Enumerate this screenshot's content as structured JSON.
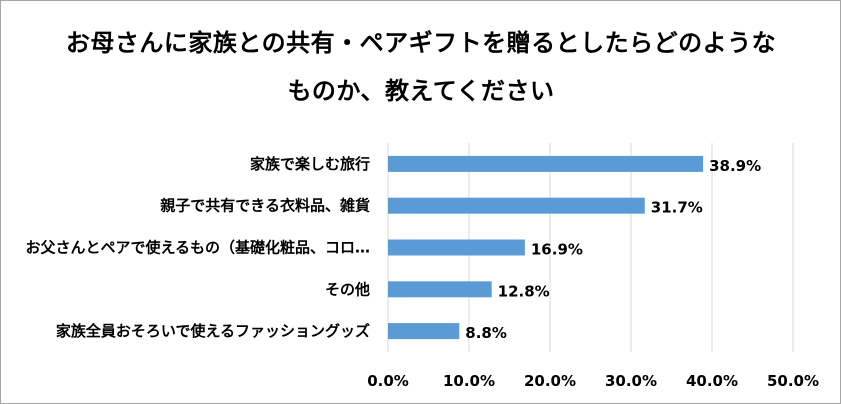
{
  "chart_data": {
    "type": "bar",
    "orientation": "horizontal",
    "title": "お母さんに家族との共有・ペアギフトを贈るとしたらどのようなものか、教えてください",
    "categories": [
      "家族で楽しむ旅行",
      "親子で共有できる衣料品、雑貨",
      "お父さんとペアで使えるもの（基礎化粧品、コロ…",
      "その他",
      "家族全員おそろいで使えるファッショングッズ"
    ],
    "values": [
      38.9,
      31.7,
      16.9,
      12.8,
      8.8
    ],
    "value_labels": [
      "38.9%",
      "31.7%",
      "16.9%",
      "12.8%",
      "8.8%"
    ],
    "xlim": [
      0,
      50
    ],
    "ticks": [
      "0.0%",
      "10.0%",
      "20.0%",
      "30.0%",
      "40.0%",
      "50.0%"
    ],
    "tick_values": [
      0,
      10,
      20,
      30,
      40,
      50
    ],
    "grid": "vertical",
    "legend": "none",
    "bar_color": "#5b9bd5",
    "grid_color": "#d9d9d9"
  }
}
